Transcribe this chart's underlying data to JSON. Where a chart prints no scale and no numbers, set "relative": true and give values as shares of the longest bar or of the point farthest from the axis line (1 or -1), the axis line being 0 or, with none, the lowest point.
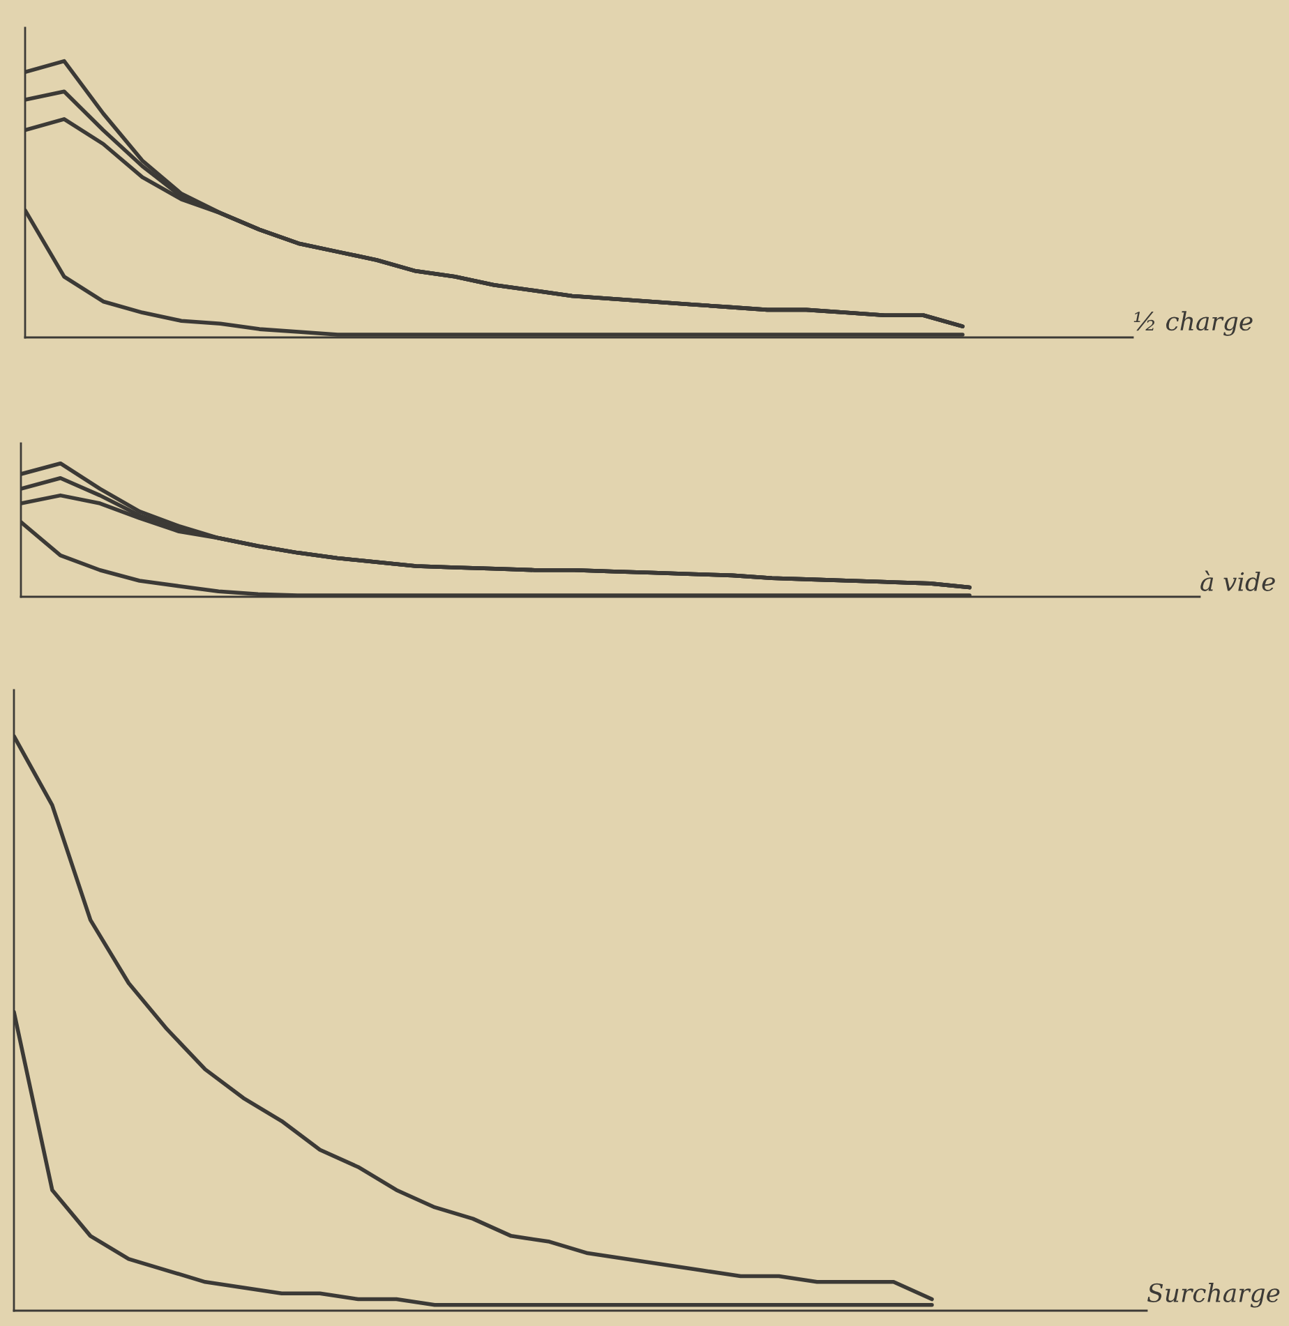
{
  "chart_data": [
    {
      "type": "line",
      "relative": true,
      "annotations": [
        "½ charge"
      ],
      "categories": [
        null,
        null,
        null,
        null,
        null,
        null,
        null,
        null,
        null,
        null,
        null,
        null,
        null,
        null,
        null,
        null,
        null,
        null,
        null,
        null,
        null,
        null,
        null,
        null,
        null
      ],
      "series": [
        {
          "color": "#3c3a36",
          "values": [
            0.96,
            1.0,
            0.81,
            0.64,
            0.52,
            0.45,
            0.39,
            0.34,
            0.31,
            0.28,
            0.24,
            0.22,
            0.19,
            0.17,
            0.15,
            0.14,
            0.13,
            0.12,
            0.11,
            0.1,
            0.1,
            0.09,
            0.08,
            0.08,
            0.04
          ]
        },
        {
          "color": "#3c3a36",
          "values": [
            0.86,
            0.89,
            0.75,
            0.62,
            0.51,
            0.45,
            0.39,
            0.34,
            0.31,
            0.28,
            0.24,
            0.22,
            0.19,
            0.17,
            0.15,
            0.14,
            0.13,
            0.12,
            0.11,
            0.1,
            0.1,
            0.09,
            0.08,
            0.08,
            0.04
          ]
        },
        {
          "color": "#3c3a36",
          "values": [
            0.75,
            0.79,
            0.7,
            0.58,
            0.5,
            0.45,
            0.39,
            0.34,
            0.31,
            0.28,
            0.24,
            0.22,
            0.19,
            0.17,
            0.15,
            0.14,
            0.13,
            0.12,
            0.11,
            0.1,
            0.1,
            0.09,
            0.08,
            0.08,
            0.04
          ]
        },
        {
          "color": "#3c3a36",
          "values": [
            0.46,
            0.22,
            0.13,
            0.09,
            0.06,
            0.05,
            0.03,
            0.02,
            0.01,
            0.01,
            0.01,
            0.01,
            0.01,
            0.01,
            0.01,
            0.01,
            0.01,
            0.01,
            0.01,
            0.01,
            0.01,
            0.01,
            0.01,
            0.01,
            0.01
          ]
        }
      ]
    },
    {
      "type": "line",
      "relative": true,
      "annotations": [
        "à vide"
      ],
      "categories": [
        null,
        null,
        null,
        null,
        null,
        null,
        null,
        null,
        null,
        null,
        null,
        null,
        null,
        null,
        null,
        null,
        null,
        null,
        null,
        null,
        null,
        null,
        null,
        null,
        null
      ],
      "series": [
        {
          "color": "#3c3a36",
          "values": [
            0.92,
            1.0,
            0.81,
            0.64,
            0.53,
            0.44,
            0.38,
            0.33,
            0.29,
            0.26,
            0.23,
            0.22,
            0.21,
            0.2,
            0.2,
            0.19,
            0.18,
            0.17,
            0.16,
            0.14,
            0.13,
            0.12,
            0.11,
            0.1,
            0.07
          ]
        },
        {
          "color": "#3c3a36",
          "values": [
            0.81,
            0.89,
            0.76,
            0.61,
            0.51,
            0.44,
            0.38,
            0.33,
            0.29,
            0.26,
            0.23,
            0.22,
            0.21,
            0.2,
            0.2,
            0.19,
            0.18,
            0.17,
            0.16,
            0.14,
            0.13,
            0.12,
            0.11,
            0.1,
            0.07
          ]
        },
        {
          "color": "#3c3a36",
          "values": [
            0.7,
            0.76,
            0.7,
            0.59,
            0.49,
            0.44,
            0.38,
            0.33,
            0.29,
            0.26,
            0.23,
            0.22,
            0.21,
            0.2,
            0.2,
            0.19,
            0.18,
            0.17,
            0.16,
            0.14,
            0.13,
            0.12,
            0.11,
            0.1,
            0.07
          ]
        },
        {
          "color": "#3c3a36",
          "values": [
            0.56,
            0.31,
            0.2,
            0.12,
            0.08,
            0.04,
            0.02,
            0.01,
            0.01,
            0.01,
            0.01,
            0.01,
            0.01,
            0.01,
            0.01,
            0.01,
            0.01,
            0.01,
            0.01,
            0.01,
            0.01,
            0.01,
            0.01,
            0.01,
            0.01
          ]
        }
      ]
    },
    {
      "type": "line",
      "relative": true,
      "annotations": [
        "Surcharge"
      ],
      "categories": [
        null,
        null,
        null,
        null,
        null,
        null,
        null,
        null,
        null,
        null,
        null,
        null,
        null,
        null,
        null,
        null,
        null,
        null,
        null,
        null,
        null,
        null,
        null,
        null,
        null
      ],
      "series": [
        {
          "color": "#3c3a36",
          "values": [
            1.0,
            0.88,
            0.68,
            0.57,
            0.49,
            0.42,
            0.37,
            0.33,
            0.28,
            0.25,
            0.21,
            0.18,
            0.16,
            0.13,
            0.12,
            0.1,
            0.09,
            0.08,
            0.07,
            0.06,
            0.06,
            0.05,
            0.05,
            0.05,
            0.02
          ]
        },
        {
          "color": "#3c3a36",
          "values": [
            0.52,
            0.21,
            0.13,
            0.09,
            0.07,
            0.05,
            0.04,
            0.03,
            0.03,
            0.02,
            0.02,
            0.01,
            0.01,
            0.01,
            0.01,
            0.01,
            0.01,
            0.01,
            0.01,
            0.01,
            0.01,
            0.01,
            0.01,
            0.01,
            0.01
          ]
        }
      ]
    }
  ]
}
